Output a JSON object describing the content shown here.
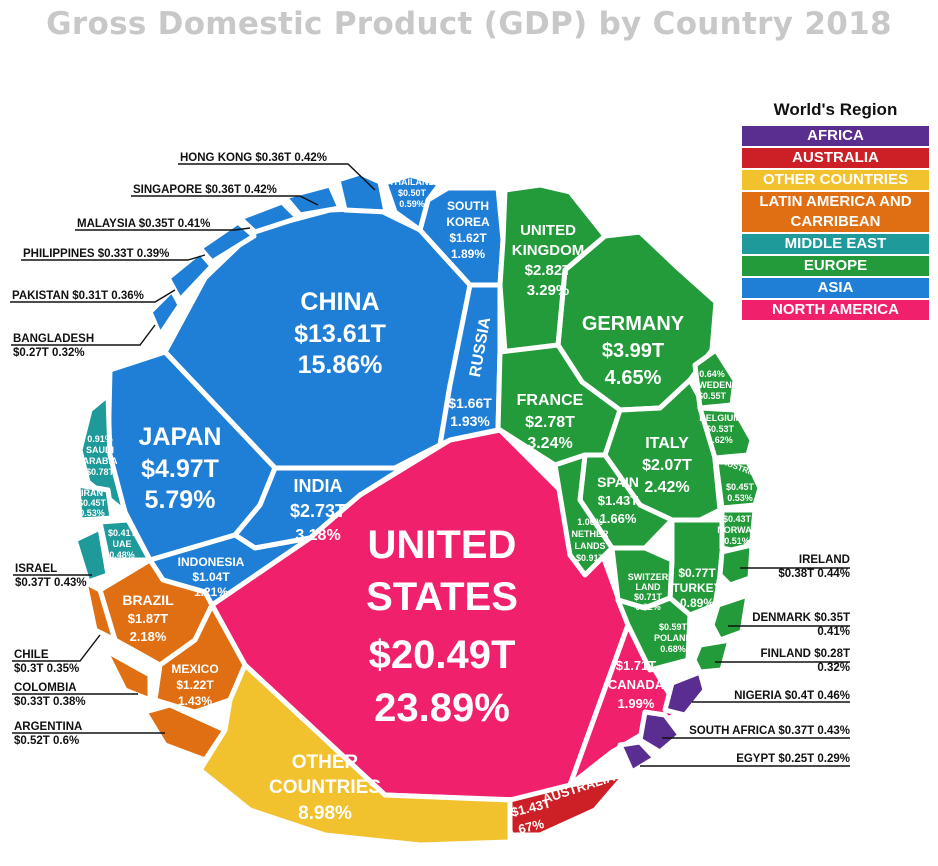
{
  "chart_data": {
    "type": "voronoi-treemap",
    "title": "Gross Domestic Product (GDP) by Country 2018",
    "legend_title": "World's Region",
    "regions": [
      {
        "name": "AFRICA",
        "color": "#5a2d91"
      },
      {
        "name": "AUSTRALIA",
        "color": "#cc1f26"
      },
      {
        "name": "OTHER COUNTRIES",
        "color": "#f2c12e"
      },
      {
        "name": "LATIN AMERICA AND CARRIBEAN",
        "color": "#df6f12"
      },
      {
        "name": "MIDDLE EAST",
        "color": "#1f9a9b"
      },
      {
        "name": "EUROPE",
        "color": "#239b3a"
      },
      {
        "name": "ASIA",
        "color": "#1f7fd6"
      },
      {
        "name": "NORTH AMERICA",
        "color": "#f0206d"
      }
    ],
    "countries": [
      {
        "name": "UNITED STATES",
        "region": "NORTH AMERICA",
        "gdp": "$20.49T",
        "share": "23.89%"
      },
      {
        "name": "CANADA",
        "region": "NORTH AMERICA",
        "gdp": "$1.71T",
        "share": "1.99%"
      },
      {
        "name": "CHINA",
        "region": "ASIA",
        "gdp": "$13.61T",
        "share": "15.86%"
      },
      {
        "name": "JAPAN",
        "region": "ASIA",
        "gdp": "$4.97T",
        "share": "5.79%"
      },
      {
        "name": "INDIA",
        "region": "ASIA",
        "gdp": "$2.73T",
        "share": "3.18%"
      },
      {
        "name": "RUSSIA",
        "region": "ASIA",
        "gdp": "$1.66T",
        "share": "1.93%"
      },
      {
        "name": "SOUTH KOREA",
        "region": "ASIA",
        "gdp": "$1.62T",
        "share": "1.89%"
      },
      {
        "name": "INDONESIA",
        "region": "ASIA",
        "gdp": "$1.04T",
        "share": "1.21%"
      },
      {
        "name": "THAILAND",
        "region": "ASIA",
        "gdp": "$0.50T",
        "share": "0.59%"
      },
      {
        "name": "HONG KONG",
        "region": "ASIA",
        "gdp": "$0.36T",
        "share": "0.42%"
      },
      {
        "name": "SINGAPORE",
        "region": "ASIA",
        "gdp": "$0.36T",
        "share": "0.42%"
      },
      {
        "name": "MALAYSIA",
        "region": "ASIA",
        "gdp": "$0.35T",
        "share": "0.41%"
      },
      {
        "name": "PHILIPPINES",
        "region": "ASIA",
        "gdp": "$0.33T",
        "share": "0.39%"
      },
      {
        "name": "PAKISTAN",
        "region": "ASIA",
        "gdp": "$0.31T",
        "share": "0.36%"
      },
      {
        "name": "BANGLADESH",
        "region": "ASIA",
        "gdp": "$0.27T",
        "share": "0.32%"
      },
      {
        "name": "GERMANY",
        "region": "EUROPE",
        "gdp": "$3.99T",
        "share": "4.65%"
      },
      {
        "name": "UNITED KINGDOM",
        "region": "EUROPE",
        "gdp": "$2.82T",
        "share": "3.29%"
      },
      {
        "name": "FRANCE",
        "region": "EUROPE",
        "gdp": "$2.78T",
        "share": "3.24%"
      },
      {
        "name": "ITALY",
        "region": "EUROPE",
        "gdp": "$2.07T",
        "share": "2.42%"
      },
      {
        "name": "SPAIN",
        "region": "EUROPE",
        "gdp": "$1.43T",
        "share": "1.66%"
      },
      {
        "name": "NETHERLANDS",
        "region": "EUROPE",
        "gdp": "$0.91T",
        "share": "1.06%"
      },
      {
        "name": "TURKEY",
        "region": "EUROPE",
        "gdp": "$0.77T",
        "share": "0.89%"
      },
      {
        "name": "SWITZERLAND",
        "region": "EUROPE",
        "gdp": "$0.71T",
        "share": "0.82%"
      },
      {
        "name": "POLAND",
        "region": "EUROPE",
        "gdp": "$0.59T",
        "share": "0.68%"
      },
      {
        "name": "SWEDEN",
        "region": "EUROPE",
        "gdp": "$0.55T",
        "share": "0.64%"
      },
      {
        "name": "BELGIUM",
        "region": "EUROPE",
        "gdp": "$0.53T",
        "share": "0.62%"
      },
      {
        "name": "AUSTRIA",
        "region": "EUROPE",
        "gdp": "$0.45T",
        "share": "0.53%"
      },
      {
        "name": "NORWAY",
        "region": "EUROPE",
        "gdp": "$0.43T",
        "share": "0.51%"
      },
      {
        "name": "IRELAND",
        "region": "EUROPE",
        "gdp": "$0.38T",
        "share": "0.44%"
      },
      {
        "name": "DENMARK",
        "region": "EUROPE",
        "gdp": "$0.35T",
        "share": "0.41%"
      },
      {
        "name": "FINLAND",
        "region": "EUROPE",
        "gdp": "$0.28T",
        "share": "0.32%"
      },
      {
        "name": "SAUDI ARABIA",
        "region": "MIDDLE EAST",
        "gdp": "$0.78T",
        "share": "0.91%"
      },
      {
        "name": "IRAN",
        "region": "MIDDLE EAST",
        "gdp": "$0.45T",
        "share": "0.53%"
      },
      {
        "name": "UAE",
        "region": "MIDDLE EAST",
        "gdp": "$0.41T",
        "share": "0.48%"
      },
      {
        "name": "ISRAEL",
        "region": "MIDDLE EAST",
        "gdp": "$0.37T",
        "share": "0.43%"
      },
      {
        "name": "BRAZIL",
        "region": "LATIN AMERICA AND CARRIBEAN",
        "gdp": "$1.87T",
        "share": "2.18%"
      },
      {
        "name": "MEXICO",
        "region": "LATIN AMERICA AND CARRIBEAN",
        "gdp": "$1.22T",
        "share": "1.43%"
      },
      {
        "name": "ARGENTINA",
        "region": "LATIN AMERICA AND CARRIBEAN",
        "gdp": "$0.52T",
        "share": "0.6%"
      },
      {
        "name": "COLOMBIA",
        "region": "LATIN AMERICA AND CARRIBEAN",
        "gdp": "$0.33T",
        "share": "0.38%"
      },
      {
        "name": "CHILE",
        "region": "LATIN AMERICA AND CARRIBEAN",
        "gdp": "$0.3T",
        "share": "0.35%"
      },
      {
        "name": "NIGERIA",
        "region": "AFRICA",
        "gdp": "$0.4T",
        "share": "0.46%"
      },
      {
        "name": "SOUTH AFRICA",
        "region": "AFRICA",
        "gdp": "$0.37T",
        "share": "0.43%"
      },
      {
        "name": "EGYPT",
        "region": "AFRICA",
        "gdp": "$0.25T",
        "share": "0.29%"
      },
      {
        "name": "AUSTRALIA",
        "region": "AUSTRALIA",
        "gdp": "$1.43T",
        "share": "1.67%"
      },
      {
        "name": "OTHER COUNTRIES",
        "region": "OTHER COUNTRIES",
        "gdp": "",
        "share": "8.98%"
      }
    ]
  }
}
